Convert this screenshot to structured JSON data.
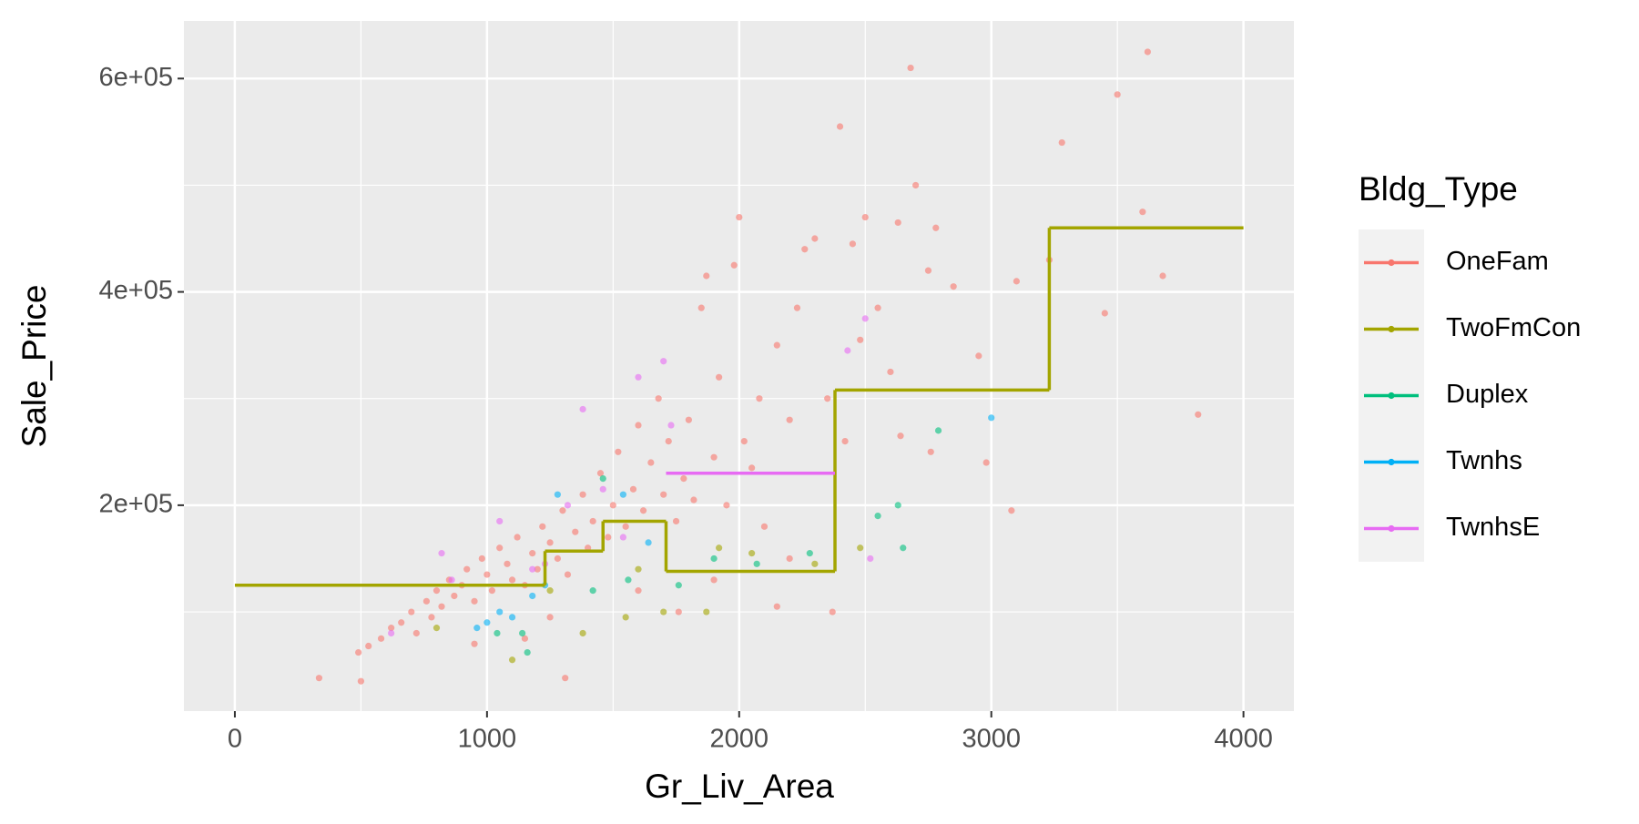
{
  "chart_data": {
    "type": "scatter",
    "x_label": "Gr_Liv_Area",
    "y_label": "Sale_Price",
    "legend_title": "Bldg_Type",
    "xlim": [
      -202,
      4200
    ],
    "ylim": [
      7000,
      654000
    ],
    "xticks": [
      0,
      1000,
      2000,
      3000,
      4000
    ],
    "yticks": [
      {
        "value": 200000,
        "label": "2e+05"
      },
      {
        "value": 400000,
        "label": "4e+05"
      },
      {
        "value": 600000,
        "label": "6e+05"
      }
    ],
    "grid": true,
    "legend": "right",
    "series": [
      {
        "name": "OneFam",
        "color": "#F8766D",
        "x": [
          334,
          500,
          490,
          530,
          580,
          620,
          660,
          700,
          720,
          760,
          780,
          800,
          820,
          850,
          870,
          900,
          920,
          950,
          980,
          1000,
          1020,
          1050,
          1080,
          1100,
          1120,
          1150,
          1180,
          1200,
          1220,
          1250,
          1280,
          1300,
          1320,
          1350,
          1380,
          1400,
          1420,
          1450,
          1480,
          1500,
          1520,
          1550,
          1580,
          1600,
          1620,
          1650,
          1680,
          1700,
          1720,
          1750,
          1780,
          1800,
          1820,
          1850,
          1870,
          1900,
          1920,
          1950,
          1980,
          2000,
          2020,
          2050,
          2080,
          2100,
          2150,
          2200,
          2230,
          2260,
          2300,
          2350,
          2400,
          2420,
          2450,
          2480,
          2500,
          2550,
          2600,
          2630,
          2680,
          2700,
          2750,
          2780,
          2850,
          2950,
          2980,
          3080,
          3100,
          3230,
          3280,
          3450,
          3500,
          3600,
          3620,
          3680,
          3820,
          1310,
          1760,
          2150,
          2370,
          1150,
          950,
          1250,
          1600,
          1900,
          2200,
          2640,
          2760
        ],
        "values": [
          38000,
          35000,
          62000,
          68000,
          75000,
          85000,
          90000,
          100000,
          80000,
          110000,
          95000,
          120000,
          105000,
          130000,
          115000,
          125000,
          140000,
          110000,
          150000,
          135000,
          120000,
          160000,
          145000,
          130000,
          170000,
          125000,
          155000,
          140000,
          180000,
          165000,
          150000,
          195000,
          135000,
          175000,
          210000,
          160000,
          185000,
          230000,
          170000,
          200000,
          250000,
          180000,
          215000,
          275000,
          195000,
          240000,
          300000,
          210000,
          260000,
          185000,
          225000,
          280000,
          205000,
          385000,
          415000,
          245000,
          320000,
          200000,
          425000,
          470000,
          260000,
          235000,
          300000,
          180000,
          350000,
          280000,
          385000,
          440000,
          450000,
          300000,
          555000,
          260000,
          445000,
          355000,
          470000,
          385000,
          325000,
          465000,
          610000,
          500000,
          420000,
          460000,
          405000,
          340000,
          240000,
          195000,
          410000,
          430000,
          540000,
          380000,
          585000,
          475000,
          625000,
          415000,
          285000,
          38000,
          100000,
          105000,
          100000,
          75000,
          70000,
          95000,
          120000,
          130000,
          150000,
          265000,
          250000
        ]
      },
      {
        "name": "TwoFmCon",
        "color": "#A3A500",
        "x": [
          1100,
          1380,
          1550,
          1700,
          1870,
          1920,
          2050,
          2300,
          2480,
          1600,
          1250,
          800
        ],
        "values": [
          55000,
          80000,
          95000,
          100000,
          100000,
          160000,
          155000,
          145000,
          160000,
          140000,
          120000,
          85000
        ],
        "steps": {
          "breaks": [
            0,
            1230,
            1460,
            1710,
            2380,
            3230,
            4000
          ],
          "values": [
            125000,
            157000,
            185000,
            138000,
            308000,
            460000
          ]
        }
      },
      {
        "name": "Duplex",
        "color": "#00BF7D",
        "x": [
          1040,
          1140,
          1160,
          1420,
          1560,
          1760,
          1900,
          2070,
          2280,
          2550,
          2630,
          2650,
          2790,
          1460
        ],
        "values": [
          80000,
          80000,
          62000,
          120000,
          130000,
          125000,
          150000,
          145000,
          155000,
          190000,
          200000,
          160000,
          270000,
          225000
        ]
      },
      {
        "name": "Twnhs",
        "color": "#00B0F6",
        "x": [
          1000,
          1050,
          1180,
          1230,
          1280,
          1540,
          1640,
          3000,
          960,
          1100
        ],
        "values": [
          90000,
          100000,
          115000,
          125000,
          210000,
          210000,
          165000,
          282000,
          85000,
          95000
        ]
      },
      {
        "name": "TwnhsE",
        "color": "#E76BF3",
        "x": [
          620,
          820,
          860,
          1050,
          1180,
          1230,
          1320,
          1380,
          1460,
          1540,
          1600,
          1700,
          1730,
          2430,
          2520,
          2500
        ],
        "values": [
          80000,
          155000,
          130000,
          185000,
          140000,
          145000,
          200000,
          290000,
          215000,
          170000,
          320000,
          335000,
          275000,
          345000,
          150000,
          375000
        ],
        "steps": {
          "breaks": [
            1710,
            2380
          ],
          "values": [
            230000
          ]
        }
      }
    ]
  }
}
